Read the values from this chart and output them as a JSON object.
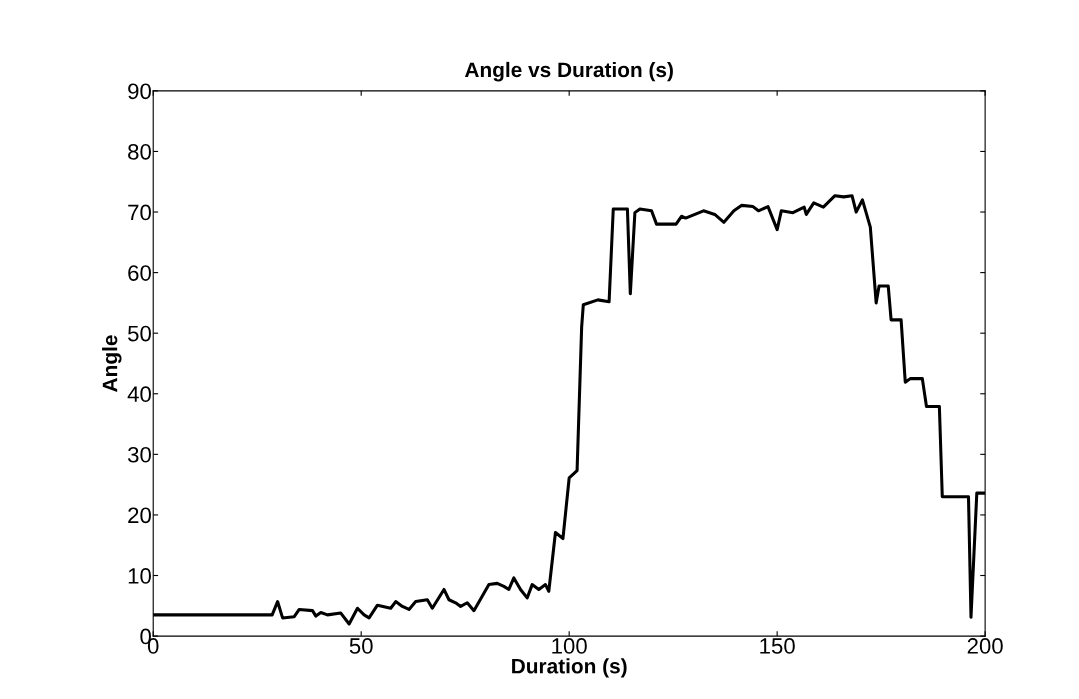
{
  "chart_data": {
    "type": "line",
    "title": "Angle vs Duration (s)",
    "xlabel": "Duration (s)",
    "ylabel": "Angle",
    "xlim": [
      0,
      200
    ],
    "ylim": [
      0,
      90
    ],
    "xticks": [
      0,
      50,
      100,
      150,
      200
    ],
    "yticks": [
      0,
      10,
      20,
      30,
      40,
      50,
      60,
      70,
      80,
      90
    ],
    "grid": false,
    "marker": "none",
    "line_style": "solid",
    "series": [
      {
        "color": "#000000",
        "x": [
          0,
          28.6,
          29.9,
          31.1,
          33.9,
          35.1,
          38.3,
          39.1,
          40.3,
          41.9,
          45.1,
          47.1,
          49.1,
          50.7,
          51.9,
          53.9,
          57.1,
          58.3,
          59.9,
          61.5,
          63.1,
          65.9,
          67.1,
          69.9,
          71.1,
          72.7,
          73.9,
          75.5,
          77.1,
          80.7,
          82.7,
          84.3,
          85.5,
          86.7,
          88.3,
          89.9,
          91.1,
          92.7,
          94.3,
          95.1,
          96.7,
          98.5,
          100,
          101.9,
          103,
          103.4,
          106.9,
          109.6,
          110.6,
          114,
          114.7,
          115.8,
          117,
          119.8,
          121,
          125.7,
          127,
          128,
          132.3,
          135,
          137.2,
          139.6,
          141.5,
          144.2,
          145.5,
          147.8,
          150,
          151,
          153.8,
          156.5,
          157,
          158.8,
          161.1,
          163.9,
          166,
          168,
          169,
          170.5,
          172.4,
          173.8,
          174.5,
          176.7,
          177.4,
          179.8,
          180.8,
          182,
          182.5,
          184.9,
          185.9,
          189,
          189.7,
          196,
          196.6,
          198,
          200
        ],
        "values": [
          3.5,
          3.5,
          5.7,
          3.0,
          3.2,
          4.4,
          4.2,
          3.3,
          3.9,
          3.5,
          3.8,
          2.0,
          4.6,
          3.5,
          3.0,
          5.1,
          4.6,
          5.7,
          4.9,
          4.4,
          5.7,
          6.0,
          4.6,
          7.7,
          6.0,
          5.5,
          4.9,
          5.5,
          4.2,
          8.5,
          8.7,
          8.2,
          7.7,
          9.6,
          7.7,
          6.3,
          8.5,
          7.7,
          8.5,
          7.4,
          17.1,
          16.1,
          26.1,
          27.3,
          51,
          54.7,
          55.5,
          55.2,
          70.5,
          70.5,
          56.5,
          69.9,
          70.5,
          70.2,
          68,
          68,
          69.3,
          69,
          70.2,
          69.6,
          68.3,
          70.2,
          71.1,
          70.9,
          70.2,
          70.9,
          67.1,
          70.2,
          69.9,
          70.8,
          69.6,
          71.5,
          70.8,
          72.7,
          72.5,
          72.7,
          70,
          72,
          67.5,
          55,
          57.8,
          57.8,
          52.2,
          52.2,
          41.9,
          42.5,
          42.5,
          42.5,
          37.9,
          37.9,
          23,
          23,
          3.1,
          23.6,
          23.6
        ]
      }
    ]
  }
}
